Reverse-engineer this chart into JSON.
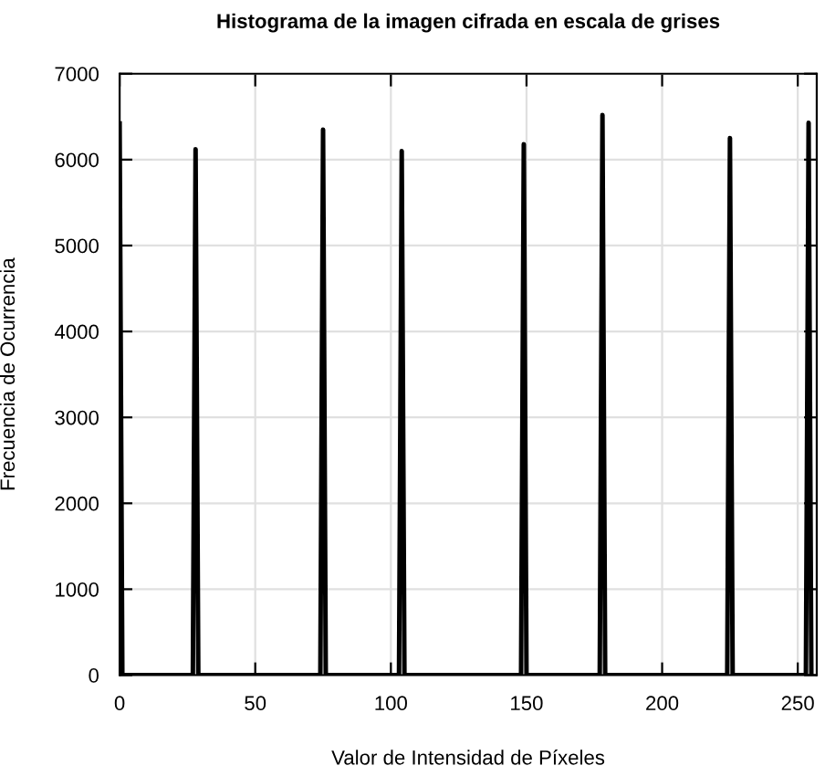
{
  "chart_data": {
    "type": "line",
    "title": "Histograma de la imagen cifrada en escala de grises",
    "xlabel": "Valor de Intensidad de Píxeles",
    "ylabel": "Frecuencia de Ocurrencia",
    "x": [
      0,
      1,
      27,
      28,
      29,
      74,
      75,
      76,
      103,
      104,
      105,
      148,
      149,
      150,
      177,
      178,
      179,
      224,
      225,
      226,
      253,
      254,
      255
    ],
    "series": [
      {
        "color": "#000000",
        "values": [
          6420,
          0,
          0,
          6120,
          0,
          0,
          6350,
          0,
          0,
          6100,
          0,
          0,
          6180,
          0,
          0,
          6520,
          0,
          0,
          6250,
          0,
          0,
          6430,
          0
        ]
      }
    ],
    "xlim": [
      0,
      257
    ],
    "xticks": [
      0,
      50,
      100,
      150,
      200,
      250
    ],
    "ylim": [
      0,
      7000
    ],
    "yticks": [
      0,
      1000,
      2000,
      3000,
      4000,
      5000,
      6000,
      7000
    ],
    "grid": true,
    "marker": "none",
    "line_style": "solid"
  }
}
